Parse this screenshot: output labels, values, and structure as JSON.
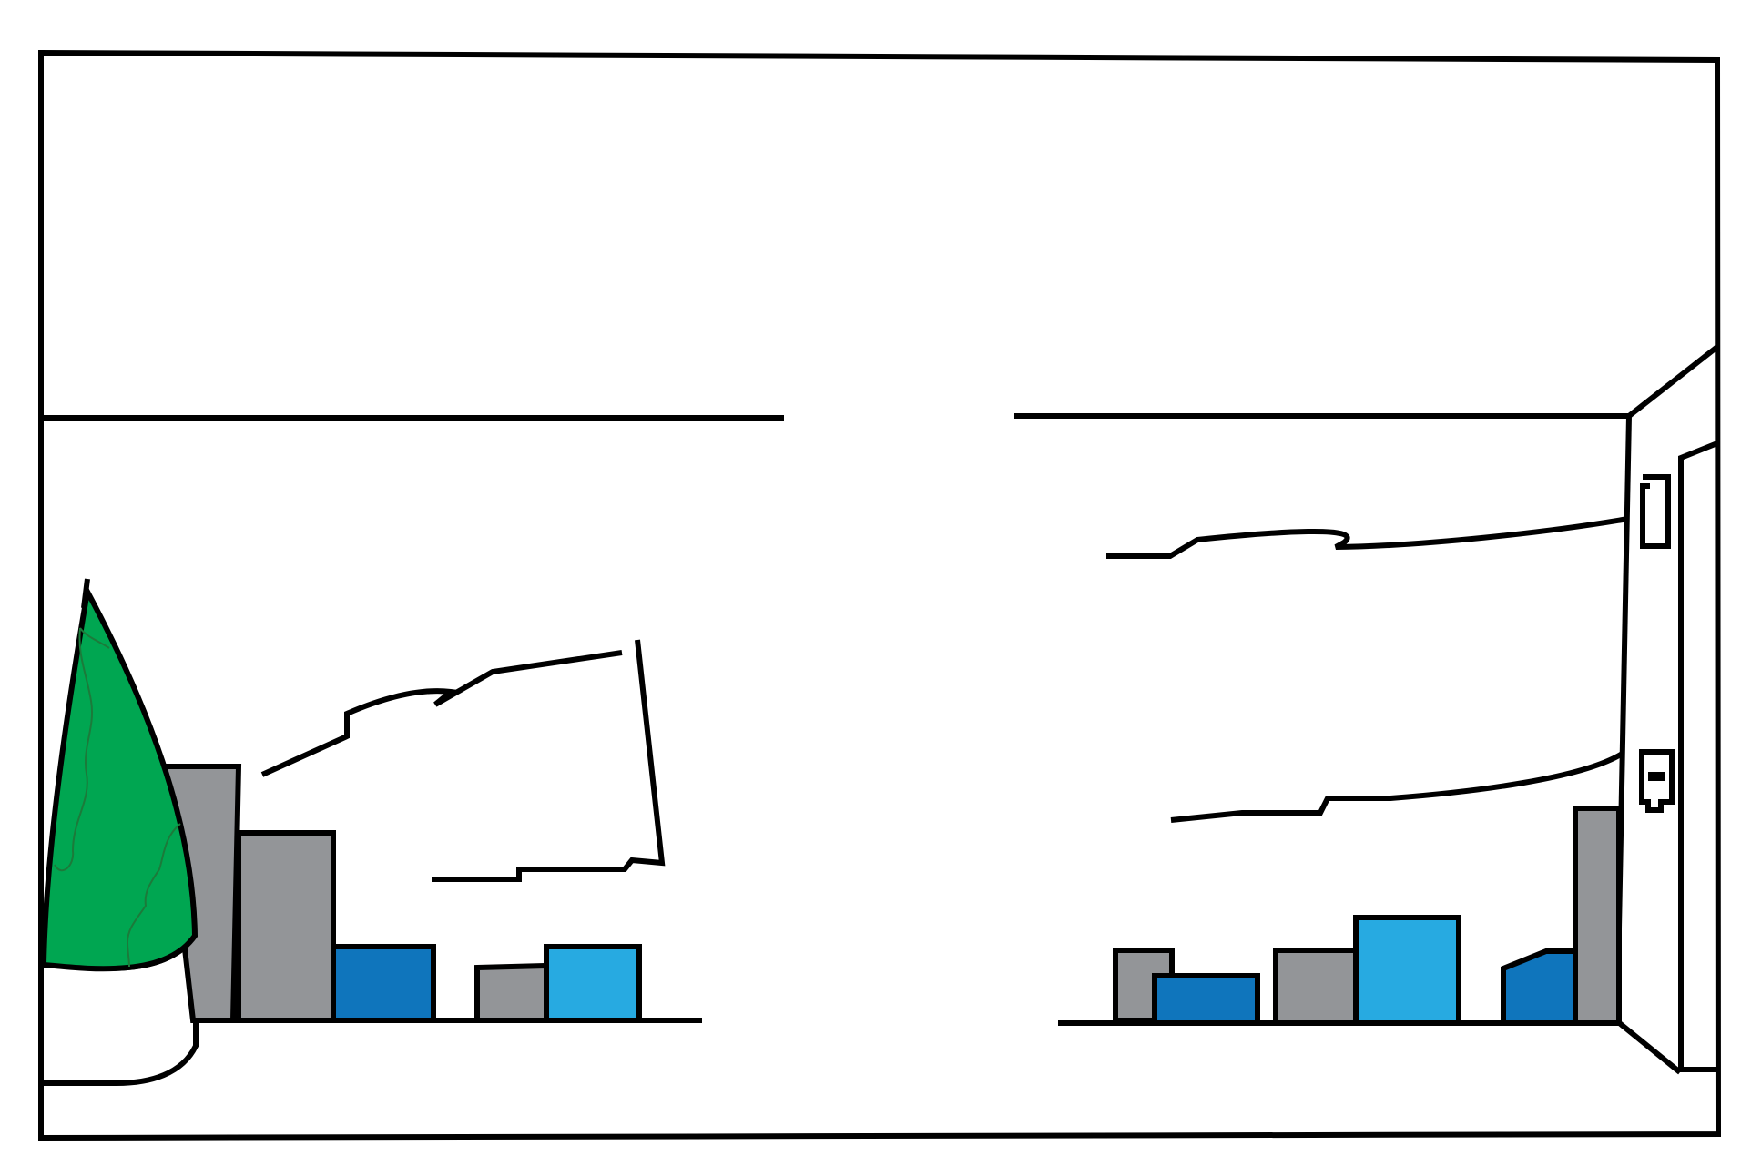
{
  "colors": {
    "background": "#ffffff",
    "outline": "#000000",
    "tree_green": "#00a651",
    "tree_detail": "#1c7a3a",
    "stone_gray": "#939598",
    "blue_dark": "#0f75bc",
    "blue_light": "#27aae1"
  },
  "icons": {
    "tree": "conical-tree-icon",
    "planter": "planter-icon",
    "left_buildings": "building-blocks-icon",
    "right_buildings": "building-blocks-icon",
    "door": "door-icon"
  }
}
